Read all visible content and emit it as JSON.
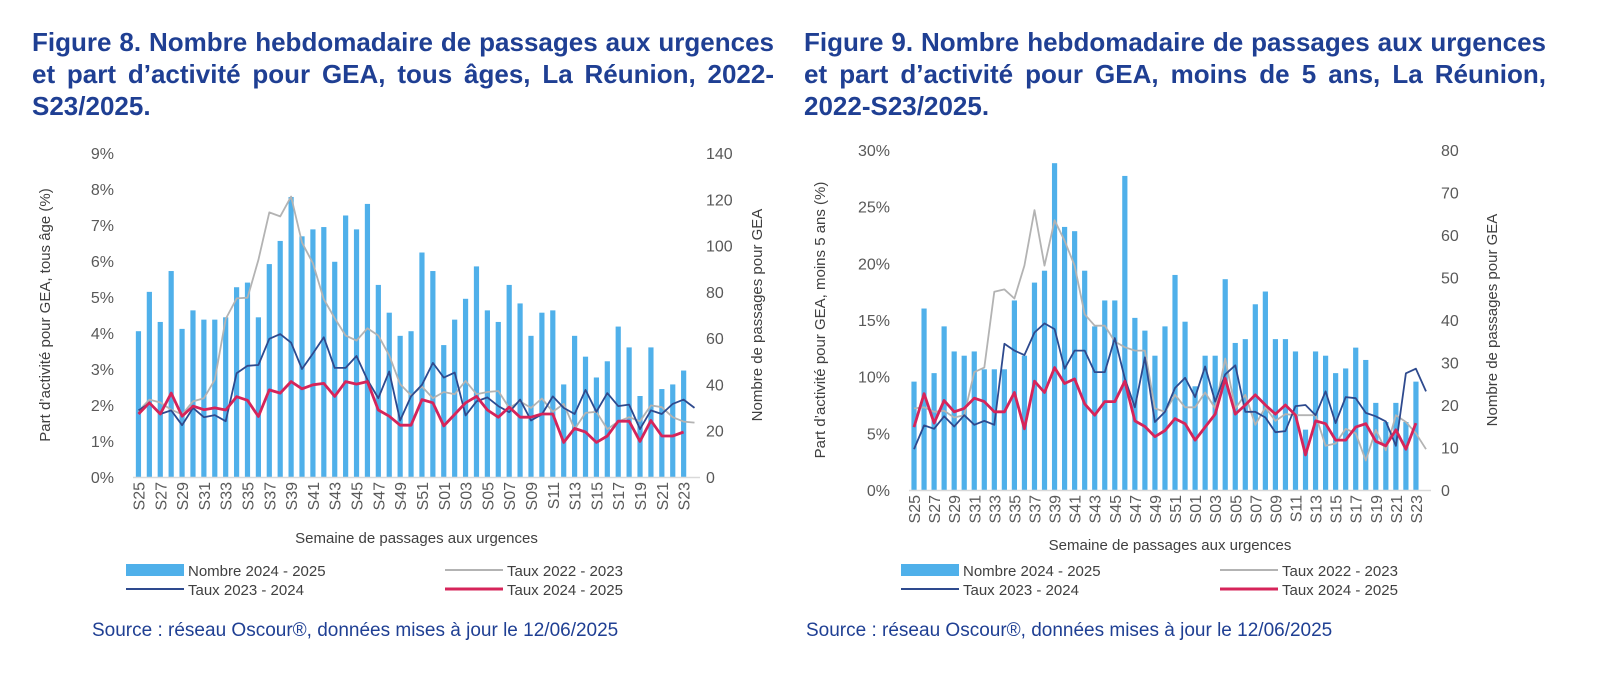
{
  "colors": {
    "title": "#1f3f93",
    "bars": "#4fb0ea",
    "taux_2022_2023": "#b3b3b3",
    "taux_2023_2024": "#2e4a8e",
    "taux_2024_2025": "#d6245a",
    "axis_text": "#595959"
  },
  "figures": [
    {
      "title": "Figure 8. Nombre hebdomadaire de passages aux urgences et part d’activité pour GEA, tous âges, La Réunion, 2022-S23/2025.",
      "source": "Source : réseau Oscour®, données mises à jour le 12/06/2025"
    },
    {
      "title": "Figure 9. Nombre hebdomadaire de passages aux urgences et part d’activité pour GEA, moins de 5 ans, La Réunion, 2022-S23/2025.",
      "source": "Source : réseau Oscour®, données mises à jour le 12/06/2025"
    }
  ],
  "chart_data": [
    {
      "type": "bar+line",
      "xlabel": "Semaine de passages aux urgences",
      "ylabel_left": "Part d’activité pour GEA, tous âge (%)",
      "ylabel_right": "Nombre de passages pour GEA",
      "y_left_ticks": [
        "0%",
        "1%",
        "2%",
        "3%",
        "4%",
        "5%",
        "6%",
        "7%",
        "8%",
        "9%"
      ],
      "y_left_lim": [
        0,
        9
      ],
      "y_right_ticks": [
        "0",
        "20",
        "40",
        "60",
        "80",
        "100",
        "120",
        "140"
      ],
      "y_right_lim": [
        0,
        140
      ],
      "x_tick_labels": [
        "S25",
        "S27",
        "S29",
        "S31",
        "S33",
        "S35",
        "S37",
        "S39",
        "S41",
        "S43",
        "S45",
        "S47",
        "S49",
        "S51",
        "S01",
        "S03",
        "S05",
        "S07",
        "S09",
        "S11",
        "S13",
        "S15",
        "S17",
        "S19",
        "S21",
        "S23"
      ],
      "grid": false,
      "legend_position": "bottom",
      "bars": {
        "name": "Nombre 2024 - 2025",
        "axis": "right",
        "values": [
          63,
          80,
          67,
          89,
          64,
          72,
          68,
          68,
          69,
          82,
          84,
          69,
          92,
          102,
          121,
          104,
          107,
          108,
          93,
          113,
          107,
          118,
          83,
          71,
          61,
          63,
          97,
          89,
          57,
          68,
          77,
          91,
          72,
          67,
          83,
          75,
          61,
          71,
          72,
          40,
          61,
          52,
          43,
          50,
          65,
          56,
          35,
          56,
          38,
          40,
          46
        ]
      },
      "series": [
        {
          "name": "Taux 2022 - 2023",
          "color_key": "taux_2022_2023",
          "axis": "left",
          "values": [
            1.83,
            2.15,
            2.07,
            1.87,
            1.74,
            2.1,
            2.19,
            2.7,
            4.39,
            4.96,
            4.98,
            6.03,
            7.35,
            7.24,
            7.79,
            6.51,
            5.94,
            4.94,
            4.41,
            3.93,
            3.79,
            4.13,
            3.93,
            3.38,
            2.58,
            2.27,
            2.51,
            2.19,
            2.36,
            2.3,
            2.67,
            2.3,
            2.36,
            2.39,
            1.92,
            2.1,
            1.92,
            2.18,
            1.81,
            2.03,
            1.33,
            1.78,
            1.81,
            1.33,
            1.54,
            1.66,
            1.55,
            1.99,
            1.94,
            1.66,
            1.54,
            1.51
          ]
        },
        {
          "name": "Taux 2023 - 2024",
          "color_key": "taux_2023_2024",
          "axis": "left",
          "values": [
            1.85,
            2.05,
            1.75,
            1.85,
            1.44,
            1.92,
            1.66,
            1.72,
            1.55,
            2.88,
            3.09,
            3.11,
            3.84,
            3.97,
            3.73,
            3.0,
            3.43,
            3.88,
            3.03,
            3.03,
            3.36,
            2.7,
            2.19,
            2.93,
            1.57,
            2.24,
            2.56,
            3.17,
            2.76,
            2.9,
            1.71,
            2.1,
            2.21,
            1.97,
            1.8,
            2.15,
            1.57,
            1.74,
            2.24,
            1.92,
            1.75,
            2.42,
            1.81,
            2.33,
            1.97,
            2.01,
            1.33,
            1.85,
            1.75,
            2.03,
            2.15,
            1.92
          ]
        },
        {
          "name": "Taux 2024 - 2025",
          "color_key": "taux_2024_2025",
          "axis": "left",
          "values": [
            1.75,
            2.06,
            1.75,
            2.33,
            1.69,
            1.97,
            1.87,
            1.92,
            1.86,
            2.23,
            2.13,
            1.68,
            2.42,
            2.33,
            2.65,
            2.45,
            2.56,
            2.6,
            2.24,
            2.65,
            2.58,
            2.65,
            1.86,
            1.69,
            1.44,
            1.44,
            2.15,
            2.06,
            1.42,
            1.74,
            2.06,
            2.24,
            1.86,
            1.66,
            1.94,
            1.66,
            1.66,
            1.75,
            1.75,
            0.96,
            1.35,
            1.25,
            0.96,
            1.14,
            1.55,
            1.55,
            0.99,
            1.57,
            1.14,
            1.14,
            1.25
          ]
        }
      ]
    },
    {
      "type": "bar+line",
      "xlabel": "Semaine de passages aux urgences",
      "ylabel_left": "Part d’activité pour GEA, moins 5 ans (%)",
      "ylabel_right": "Nombre de passages pour GEA",
      "y_left_ticks": [
        "0%",
        "5%",
        "10%",
        "15%",
        "20%",
        "25%",
        "30%"
      ],
      "y_left_lim": [
        0,
        30
      ],
      "y_right_ticks": [
        "0",
        "10",
        "20",
        "30",
        "40",
        "50",
        "60",
        "70",
        "80"
      ],
      "y_right_lim": [
        0,
        80
      ],
      "x_tick_labels": [
        "S25",
        "S27",
        "S29",
        "S31",
        "S33",
        "S35",
        "S37",
        "S39",
        "S41",
        "S43",
        "S45",
        "S47",
        "S49",
        "S51",
        "S01",
        "S03",
        "S05",
        "S07",
        "S09",
        "S11",
        "S13",
        "S15",
        "S17",
        "S19",
        "S21",
        "S23"
      ],
      "grid": false,
      "legend_position": "bottom",
      "bars": {
        "name": "Nombre 2024 - 2025",
        "axis": "right",
        "values": [
          25.5,
          42.7,
          27.5,
          38.5,
          32.6,
          31.6,
          32.6,
          28.4,
          28.4,
          28.4,
          44.6,
          31.6,
          48.8,
          51.6,
          76.9,
          61.9,
          60.9,
          51.6,
          38.5,
          44.6,
          44.6,
          73.9,
          40.5,
          37.5,
          31.6,
          38.5,
          50.6,
          39.6,
          24.4,
          31.6,
          31.6,
          49.6,
          34.6,
          35.5,
          43.7,
          46.7,
          35.5,
          35.5,
          32.6,
          14.2,
          32.6,
          31.6,
          27.5,
          28.6,
          33.5,
          30.6,
          20.5,
          16.0,
          20.5,
          16.0,
          25.5
        ]
      },
      "series": [
        {
          "name": "Taux 2022 - 2023",
          "color_key": "taux_2022_2023",
          "axis": "left",
          "values": [
            7.2,
            7.3,
            6.9,
            7.0,
            6.4,
            6.6,
            10.4,
            10.8,
            17.5,
            17.7,
            16.9,
            19.8,
            24.7,
            19.8,
            23.8,
            22.0,
            19.8,
            15.5,
            14.5,
            14.5,
            13.1,
            12.6,
            12.3,
            12.3,
            7.2,
            6.9,
            8.4,
            7.3,
            7.3,
            8.6,
            7.2,
            11.6,
            7.2,
            8.4,
            5.75,
            7.3,
            6.1,
            6.7,
            6.6,
            6.6,
            6.6,
            3.9,
            4.1,
            5.4,
            5.0,
            2.6,
            5.3,
            3.5,
            6.6,
            6.0,
            5.0,
            3.6
          ]
        },
        {
          "name": "Taux 2023 - 2024",
          "color_key": "taux_2023_2024",
          "axis": "left",
          "values": [
            3.6,
            5.7,
            5.4,
            6.5,
            5.6,
            6.6,
            5.75,
            6.1,
            5.75,
            12.9,
            12.3,
            11.9,
            13.9,
            14.7,
            14.2,
            10.7,
            12.3,
            12.3,
            10.4,
            10.4,
            13.4,
            9.85,
            7.3,
            11.7,
            6.0,
            6.9,
            9.0,
            9.9,
            8.2,
            10.9,
            7.8,
            10.2,
            11.0,
            6.9,
            6.9,
            6.4,
            5.1,
            5.2,
            7.4,
            7.5,
            6.6,
            8.7,
            5.9,
            8.2,
            8.1,
            6.8,
            6.5,
            6.05,
            3.9,
            10.3,
            10.7,
            8.7
          ]
        },
        {
          "name": "Taux 2024 - 2025",
          "color_key": "taux_2024_2025",
          "axis": "left",
          "values": [
            5.55,
            8.5,
            5.9,
            7.9,
            6.9,
            7.2,
            8.1,
            7.8,
            6.9,
            6.9,
            8.6,
            5.4,
            9.6,
            8.6,
            10.8,
            9.4,
            9.8,
            7.6,
            6.6,
            7.8,
            7.8,
            9.6,
            6.1,
            5.6,
            4.7,
            5.25,
            6.3,
            5.85,
            4.4,
            5.55,
            6.7,
            9.85,
            6.7,
            7.5,
            8.4,
            7.5,
            6.7,
            7.5,
            6.6,
            3.1,
            6.1,
            5.85,
            4.4,
            4.4,
            5.55,
            5.85,
            4.3,
            3.9,
            5.3,
            3.6,
            5.9
          ]
        }
      ]
    }
  ]
}
